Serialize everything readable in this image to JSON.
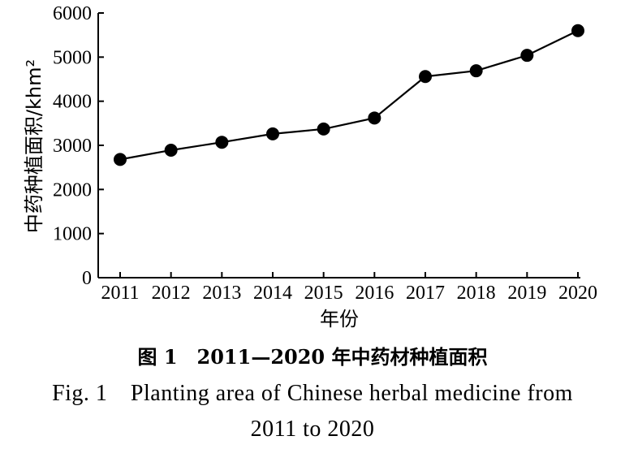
{
  "chart_data": {
    "type": "line",
    "x": [
      "2011",
      "2012",
      "2013",
      "2014",
      "2015",
      "2016",
      "2017",
      "2018",
      "2019",
      "2020"
    ],
    "series": [
      {
        "values": [
          2680,
          2890,
          3070,
          3260,
          3370,
          3620,
          4560,
          4690,
          5040,
          5600
        ]
      }
    ],
    "xlabel": "年份",
    "ylabel": "中药种植面积/khm²",
    "ylim": [
      0,
      6000
    ],
    "yticks": [
      "0",
      "1000",
      "2000",
      "3000",
      "4000",
      "5000",
      "6000"
    ],
    "grid": false,
    "marker_color": "#000000",
    "line_color": "#000000"
  },
  "caption": {
    "cn": "图 1　2011—2020 年中药材种植面积",
    "en_line1": "Fig. 1　Planting area of Chinese herbal medicine from",
    "en_line2": "2011 to 2020"
  }
}
